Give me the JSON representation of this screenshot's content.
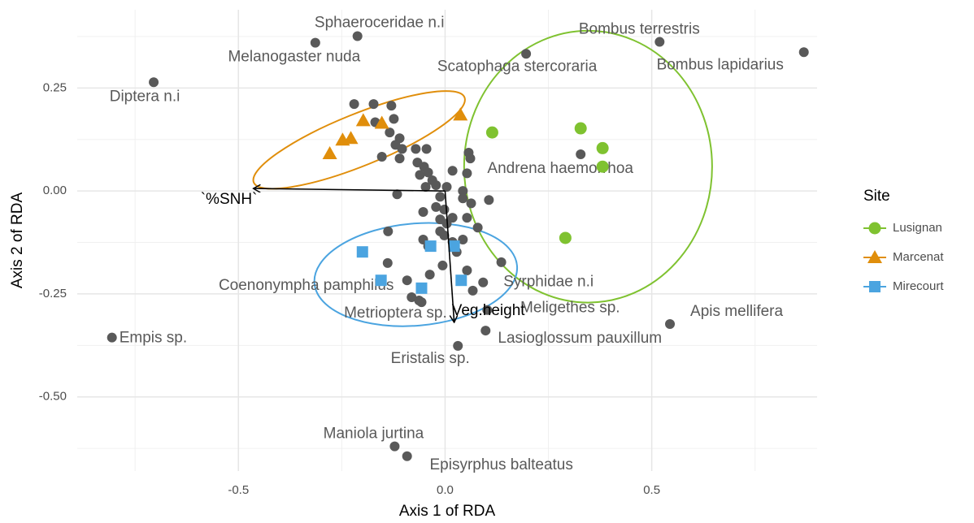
{
  "chart_data": {
    "type": "scatter",
    "x_label": "Axis 1 of RDA",
    "y_label": "Axis 2 of RDA",
    "xlim": [
      -0.89,
      0.9
    ],
    "ylim": [
      -0.68,
      0.44
    ],
    "xticks": [
      -0.5,
      {
        "value": 0,
        "label": "0.0"
      },
      0.5
    ],
    "yticks": [
      0.25,
      {
        "value": 0,
        "label": "0.00"
      },
      -0.25,
      {
        "value": -0.5,
        "label": "-0.50"
      }
    ],
    "x_minor_grid": [
      -0.75,
      -0.25,
      0.25,
      0.75
    ],
    "y_minor_grid": [
      0.375,
      0.125,
      -0.125,
      -0.375,
      -0.625
    ],
    "grid": true,
    "species_color": "#595959",
    "species_points": {
      "x": [
        -0.22,
        -0.173,
        -0.13,
        -0.169,
        -0.124,
        -0.134,
        -0.11,
        -0.12,
        -0.104,
        -0.11,
        -0.153,
        -0.071,
        -0.045,
        -0.067,
        -0.051,
        -0.061,
        -0.041,
        -0.031,
        -0.047,
        -0.022,
        0.018,
        0.057,
        0.061,
        0.053,
        0.106,
        0.063,
        0.043,
        0.043,
        -0.012,
        -0.053,
        -0.022,
        -0.002,
        -0.012,
        0.004,
        0.018,
        -0.002,
        -0.053,
        0.018,
        0.043,
        -0.139,
        -0.138,
        -0.037,
        0.053,
        0.067,
        0.136,
        0.079,
        0.053,
        -0.116,
        0.004,
        -0.012,
        0.028,
        -0.041,
        -0.081,
        -0.057,
        -0.006
      ],
      "y": [
        0.211,
        0.211,
        0.207,
        0.167,
        0.175,
        0.142,
        0.128,
        0.112,
        0.102,
        0.079,
        0.083,
        0.102,
        0.102,
        0.069,
        0.059,
        0.039,
        0.045,
        0.026,
        0.01,
        0.014,
        0.049,
        0.093,
        0.079,
        0.043,
        -0.022,
        -0.03,
        0.0,
        -0.018,
        -0.014,
        -0.051,
        -0.039,
        -0.045,
        -0.069,
        -0.079,
        -0.065,
        -0.108,
        -0.118,
        -0.124,
        -0.118,
        -0.175,
        -0.098,
        -0.203,
        -0.193,
        -0.242,
        -0.173,
        -0.089,
        -0.065,
        -0.008,
        0.01,
        -0.098,
        -0.148,
        -0.134,
        -0.258,
        -0.27,
        -0.181
      ]
    },
    "labeled_species": [
      {
        "label": "Sphaeroceridae n.i",
        "x": -0.212,
        "y": 0.376
      },
      {
        "label": "Melanogaster nuda",
        "x": -0.314,
        "y": 0.36
      },
      {
        "label": "Diptera n.i",
        "x": -0.705,
        "y": 0.264
      },
      {
        "label": "Bombus terrestris",
        "x": 0.519,
        "y": 0.362
      },
      {
        "label": "Scatophaga stercoraria",
        "x": 0.196,
        "y": 0.333
      },
      {
        "label": "Bombus lapidarius",
        "x": 0.868,
        "y": 0.337
      },
      {
        "label": "Andrena haemorrhoa",
        "x": 0.328,
        "y": 0.089
      },
      {
        "label": "Empis sp.",
        "x": -0.806,
        "y": -0.356
      },
      {
        "label": "Coenonympha pamphilus",
        "x": -0.092,
        "y": -0.217
      },
      {
        "label": "Syrphidae n.i",
        "x": 0.092,
        "y": -0.222
      },
      {
        "label": "Metrioptera sp.",
        "x": -0.063,
        "y": -0.266
      },
      {
        "label": "Meligethes sp.",
        "x": 0.102,
        "y": -0.289
      },
      {
        "label": "Apis mellifera",
        "x": 0.544,
        "y": -0.323
      },
      {
        "label": "Lasioglossum pauxillum",
        "x": 0.098,
        "y": -0.339
      },
      {
        "label": "Eristalis sp.",
        "x": 0.031,
        "y": -0.376
      },
      {
        "label": "Maniola jurtina",
        "x": -0.122,
        "y": -0.62
      },
      {
        "label": "Episyrphus balteatus",
        "x": -0.092,
        "y": -0.644
      }
    ],
    "arrows": [
      {
        "label": "`%SNH`",
        "x": -0.464,
        "y": 0.006
      },
      {
        "label": "Veg.height",
        "x": 0.022,
        "y": -0.319
      }
    ],
    "legend_title": "Site",
    "series": [
      {
        "name": "Lusignan",
        "color": "#7fc230",
        "shape": "circle",
        "x": [
          0.114,
          0.328,
          0.381,
          0.381,
          0.291
        ],
        "y": [
          0.142,
          0.152,
          0.104,
          0.059,
          -0.114
        ],
        "ellipse": {
          "cx": 0.346,
          "cy": 0.059,
          "rx": 0.3,
          "ry": 0.33,
          "angle": 0
        }
      },
      {
        "name": "Marcenat",
        "color": "#e08e0b",
        "shape": "triangle",
        "x": [
          0.037,
          -0.198,
          -0.153,
          -0.228,
          -0.248,
          -0.279
        ],
        "y": [
          0.185,
          0.171,
          0.165,
          0.128,
          0.124,
          0.091
        ],
        "ellipse": {
          "cx": -0.208,
          "cy": 0.124,
          "rx": 0.275,
          "ry": 0.063,
          "angle": -22
        }
      },
      {
        "name": "Mirecourt",
        "color": "#4ba4e0",
        "shape": "square",
        "x": [
          -0.2,
          -0.155,
          -0.057,
          -0.035,
          0.022,
          0.039
        ],
        "y": [
          -0.148,
          -0.217,
          -0.236,
          -0.134,
          -0.134,
          -0.217
        ],
        "ellipse": {
          "cx": -0.071,
          "cy": -0.203,
          "rx": 0.246,
          "ry": 0.124,
          "angle": -5
        }
      }
    ]
  }
}
